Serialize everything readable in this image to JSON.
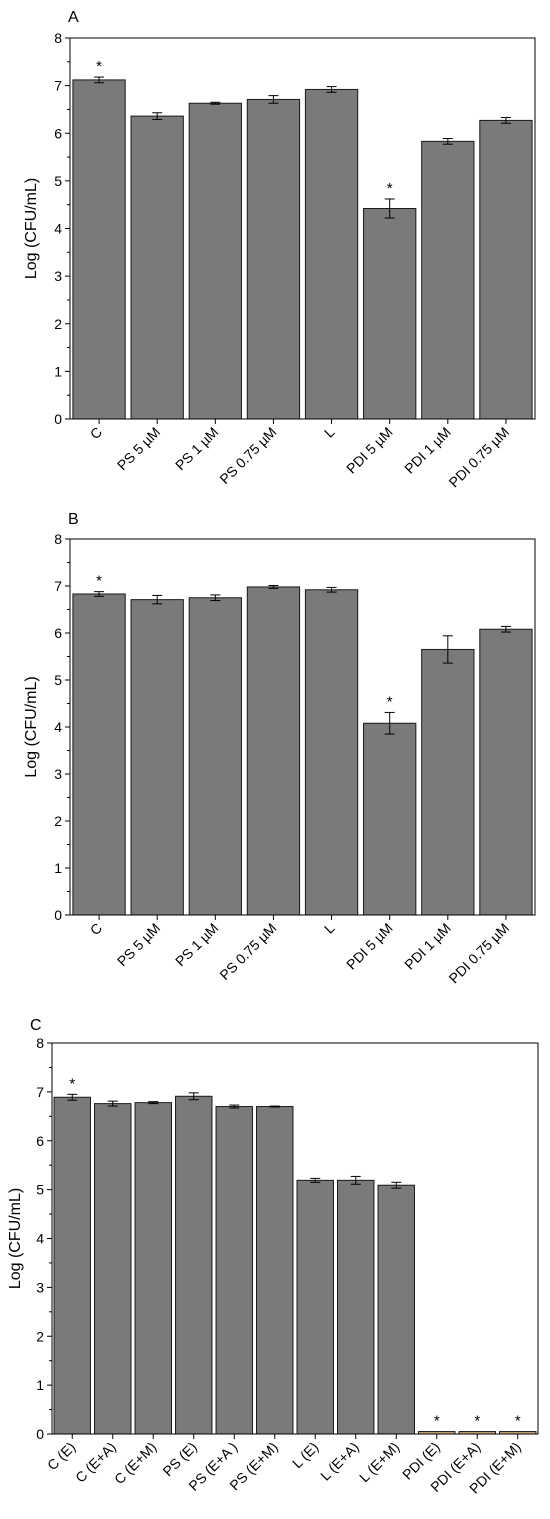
{
  "chart_data": [
    {
      "type": "bar",
      "panel_label": "A",
      "ylabel": "Log (CFU/mL)",
      "xlabel": "",
      "ylim": [
        0,
        8
      ],
      "yticks": [
        "0",
        "1",
        "2",
        "3",
        "4",
        "5",
        "6",
        "7",
        "8"
      ],
      "categories": [
        "C",
        "PS 5 µM",
        "PS 1 µM",
        "PS 0.75 µM",
        "L",
        "PDI 5 µM",
        "PDI 1 µM",
        "PDI 0.75 µM"
      ],
      "values": [
        7.12,
        6.36,
        6.63,
        6.71,
        6.92,
        4.42,
        5.83,
        6.27
      ],
      "errors": [
        0.06,
        0.07,
        0.02,
        0.08,
        0.06,
        0.2,
        0.06,
        0.06
      ],
      "significance": [
        "*",
        "",
        "",
        "",
        "",
        "*",
        "",
        ""
      ],
      "bar_colors": [
        "#7a7a7a",
        "#7a7a7a",
        "#7a7a7a",
        "#7a7a7a",
        "#7a7a7a",
        "#7a7a7a",
        "#7a7a7a",
        "#7a7a7a"
      ],
      "grid": false
    },
    {
      "type": "bar",
      "panel_label": "B",
      "ylabel": "Log (CFU/mL)",
      "xlabel": "",
      "ylim": [
        0,
        8
      ],
      "yticks": [
        "0",
        "1",
        "2",
        "3",
        "4",
        "5",
        "6",
        "7",
        "8"
      ],
      "categories": [
        "C",
        "PS 5 µM",
        "PS 1 µM",
        "PS 0.75 µM",
        "L",
        "PDI 5 µM",
        "PDI 1 µM",
        "PDI 0.75 µM"
      ],
      "values": [
        6.83,
        6.71,
        6.75,
        6.98,
        6.92,
        4.08,
        5.65,
        6.08
      ],
      "errors": [
        0.05,
        0.09,
        0.06,
        0.03,
        0.05,
        0.23,
        0.29,
        0.06
      ],
      "significance": [
        "*",
        "",
        "",
        "",
        "",
        "*",
        "",
        ""
      ],
      "bar_colors": [
        "#7a7a7a",
        "#7a7a7a",
        "#7a7a7a",
        "#7a7a7a",
        "#7a7a7a",
        "#7a7a7a",
        "#7a7a7a",
        "#7a7a7a"
      ],
      "grid": false
    },
    {
      "type": "bar",
      "panel_label": "C",
      "ylabel": "Log (CFU/mL)",
      "xlabel": "",
      "ylim": [
        0,
        8
      ],
      "yticks": [
        "0",
        "1",
        "2",
        "3",
        "4",
        "5",
        "6",
        "7",
        "8"
      ],
      "categories": [
        "C (E)",
        "C (E+A)",
        "C (E+M)",
        "PS (E)",
        "PS (E+A )",
        "PS (E+M)",
        "L (E)",
        "L (E+A)",
        "L (E+M)",
        "PDI (E)",
        "PDI (E+A)",
        "PDI (E+M)"
      ],
      "values": [
        6.89,
        6.76,
        6.78,
        6.91,
        6.7,
        6.7,
        5.19,
        5.19,
        5.09,
        0.05,
        0.05,
        0.05
      ],
      "errors": [
        0.06,
        0.05,
        0.02,
        0.07,
        0.03,
        0.01,
        0.04,
        0.08,
        0.06,
        0,
        0,
        0
      ],
      "significance": [
        "*",
        "",
        "",
        "",
        "",
        "",
        "",
        "",
        "",
        "*",
        "*",
        "*"
      ],
      "bar_colors": [
        "#7a7a7a",
        "#7a7a7a",
        "#7a7a7a",
        "#7a7a7a",
        "#7a7a7a",
        "#7a7a7a",
        "#7a7a7a",
        "#7a7a7a",
        "#7a7a7a",
        "#c8a37c",
        "#c8a37c",
        "#c8a37c"
      ],
      "grid": false
    }
  ]
}
